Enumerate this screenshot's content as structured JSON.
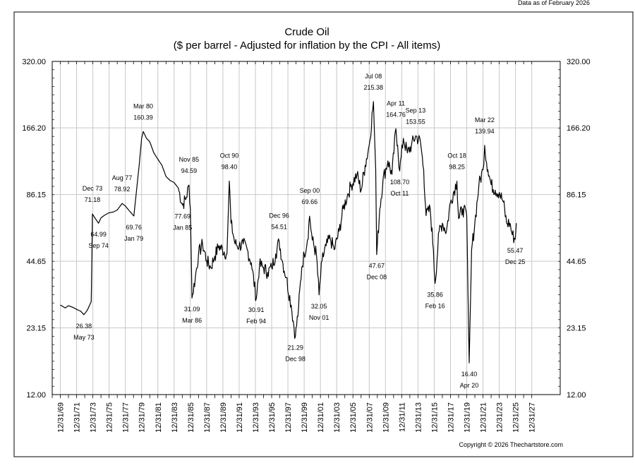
{
  "header_note": "Data as of February 2026",
  "copyright": "Copyright © 2026 Thechartstore.com",
  "chart_data": {
    "type": "line",
    "title": "Crude Oil",
    "subtitle": "($ per barrel - Adjusted for inflation by the CPI - All items)",
    "y_scale": "log",
    "ylim": [
      12,
      320
    ],
    "y_ticks": [
      "320.00",
      "166.20",
      "86.15",
      "44.65",
      "23.15",
      "12.00"
    ],
    "x_ticks": [
      "12/31/69",
      "12/31/71",
      "12/31/73",
      "12/31/75",
      "12/31/77",
      "12/31/79",
      "12/31/81",
      "12/31/83",
      "12/31/85",
      "12/31/87",
      "12/31/89",
      "12/31/91",
      "12/31/93",
      "12/31/95",
      "12/31/97",
      "12/31/99",
      "12/31/01",
      "12/31/03",
      "12/31/05",
      "12/31/07",
      "12/31/09",
      "12/31/11",
      "12/31/13",
      "12/31/15",
      "12/31/17",
      "12/31/19",
      "12/31/21",
      "12/31/23",
      "12/31/25",
      "12/31/27"
    ],
    "x_range": [
      1969.0,
      2028.0
    ],
    "series": [
      {
        "name": "Crude Oil (inflation adjusted)",
        "points": [
          [
            1970.0,
            29.0
          ],
          [
            1970.6,
            28.2
          ],
          [
            1971.0,
            28.8
          ],
          [
            1971.5,
            28.4
          ],
          [
            1972.0,
            27.8
          ],
          [
            1972.5,
            27.3
          ],
          [
            1972.9,
            26.38
          ],
          [
            1973.3,
            27.5
          ],
          [
            1973.8,
            30.0
          ],
          [
            1973.95,
            71.18
          ],
          [
            1974.3,
            68.0
          ],
          [
            1974.7,
            64.99
          ],
          [
            1975.0,
            68.5
          ],
          [
            1975.5,
            70.5
          ],
          [
            1976.0,
            72.0
          ],
          [
            1976.5,
            72.5
          ],
          [
            1977.0,
            74.0
          ],
          [
            1977.6,
            78.92
          ],
          [
            1978.0,
            77.0
          ],
          [
            1978.4,
            74.0
          ],
          [
            1979.04,
            69.76
          ],
          [
            1979.3,
            85.0
          ],
          [
            1979.7,
            115.0
          ],
          [
            1980.0,
            150.0
          ],
          [
            1980.2,
            160.39
          ],
          [
            1980.6,
            150.0
          ],
          [
            1981.0,
            145.0
          ],
          [
            1981.5,
            130.0
          ],
          [
            1982.0,
            122.0
          ],
          [
            1982.5,
            115.0
          ],
          [
            1983.0,
            103.0
          ],
          [
            1983.5,
            99.0
          ],
          [
            1984.0,
            97.0
          ],
          [
            1984.5,
            92.0
          ],
          [
            1985.04,
            77.69
          ],
          [
            1985.5,
            84.0
          ],
          [
            1985.83,
            94.59
          ],
          [
            1986.0,
            75.0
          ],
          [
            1986.2,
            31.09
          ],
          [
            1986.6,
            38.0
          ],
          [
            1987.0,
            48.0
          ],
          [
            1987.5,
            53.0
          ],
          [
            1988.0,
            45.0
          ],
          [
            1988.5,
            42.0
          ],
          [
            1989.0,
            47.0
          ],
          [
            1989.5,
            52.0
          ],
          [
            1990.5,
            48.0
          ],
          [
            1990.79,
            98.4
          ],
          [
            1991.0,
            65.0
          ],
          [
            1991.5,
            53.0
          ],
          [
            1992.0,
            52.0
          ],
          [
            1992.5,
            53.0
          ],
          [
            1993.0,
            50.0
          ],
          [
            1993.5,
            44.0
          ],
          [
            1994.1,
            30.91
          ],
          [
            1994.5,
            43.0
          ],
          [
            1995.0,
            42.0
          ],
          [
            1995.5,
            40.0
          ],
          [
            1996.0,
            42.0
          ],
          [
            1996.5,
            48.0
          ],
          [
            1996.92,
            54.51
          ],
          [
            1997.3,
            45.0
          ],
          [
            1997.8,
            38.0
          ],
          [
            1998.4,
            29.0
          ],
          [
            1998.92,
            21.29
          ],
          [
            1999.3,
            28.0
          ],
          [
            1999.7,
            42.0
          ],
          [
            2000.0,
            48.0
          ],
          [
            2000.4,
            55.0
          ],
          [
            2000.67,
            69.66
          ],
          [
            2001.0,
            55.0
          ],
          [
            2001.5,
            48.0
          ],
          [
            2001.83,
            32.05
          ],
          [
            2002.2,
            45.0
          ],
          [
            2002.7,
            52.0
          ],
          [
            2003.2,
            56.0
          ],
          [
            2003.7,
            50.0
          ],
          [
            2004.3,
            60.0
          ],
          [
            2004.8,
            75.0
          ],
          [
            2005.3,
            85.0
          ],
          [
            2005.8,
            95.0
          ],
          [
            2006.5,
            105.0
          ],
          [
            2007.0,
            90.0
          ],
          [
            2007.5,
            115.0
          ],
          [
            2008.0,
            140.0
          ],
          [
            2008.52,
            215.38
          ],
          [
            2008.8,
            110.0
          ],
          [
            2008.92,
            47.67
          ],
          [
            2009.3,
            75.0
          ],
          [
            2009.7,
            100.0
          ],
          [
            2010.3,
            120.0
          ],
          [
            2010.8,
            105.0
          ],
          [
            2011.28,
            164.76
          ],
          [
            2011.5,
            140.0
          ],
          [
            2011.75,
            108.7
          ],
          [
            2012.2,
            150.0
          ],
          [
            2012.7,
            130.0
          ],
          [
            2013.2,
            140.0
          ],
          [
            2013.7,
            153.55
          ],
          [
            2014.3,
            145.0
          ],
          [
            2014.7,
            110.0
          ],
          [
            2015.0,
            70.0
          ],
          [
            2015.5,
            75.0
          ],
          [
            2015.9,
            50.0
          ],
          [
            2016.1,
            35.86
          ],
          [
            2016.6,
            60.0
          ],
          [
            2017.0,
            65.0
          ],
          [
            2017.5,
            60.0
          ],
          [
            2018.0,
            80.0
          ],
          [
            2018.79,
            98.25
          ],
          [
            2019.0,
            68.0
          ],
          [
            2019.5,
            75.0
          ],
          [
            2020.0,
            70.0
          ],
          [
            2020.3,
            16.4
          ],
          [
            2020.6,
            50.0
          ],
          [
            2021.0,
            65.0
          ],
          [
            2021.5,
            95.0
          ],
          [
            2022.0,
            110.0
          ],
          [
            2022.2,
            139.94
          ],
          [
            2022.6,
            110.0
          ],
          [
            2023.0,
            95.0
          ],
          [
            2023.5,
            90.0
          ],
          [
            2024.0,
            88.0
          ],
          [
            2024.5,
            80.0
          ],
          [
            2024.9,
            65.0
          ],
          [
            2025.3,
            65.0
          ],
          [
            2025.6,
            58.0
          ],
          [
            2025.96,
            55.47
          ],
          [
            2026.1,
            65.0
          ]
        ]
      }
    ],
    "annotations": [
      {
        "date": "May 73",
        "value": "26.38",
        "x": 1972.9,
        "y": 26.38,
        "pos": "below"
      },
      {
        "date": "Dec 73",
        "value": "71.18",
        "x": 1973.95,
        "y": 71.18,
        "pos": "above"
      },
      {
        "date": "Sep 74",
        "value": "64.99",
        "x": 1974.7,
        "y": 64.99,
        "pos": "below"
      },
      {
        "date": "Aug 77",
        "value": "78.92",
        "x": 1977.6,
        "y": 78.92,
        "pos": "above"
      },
      {
        "date": "Jan 79",
        "value": "69.76",
        "x": 1979.04,
        "y": 69.76,
        "pos": "below"
      },
      {
        "date": "Mar 80",
        "value": "160.39",
        "x": 1980.2,
        "y": 160.39,
        "pos": "above"
      },
      {
        "date": "Jan 85",
        "value": "77.69",
        "x": 1985.04,
        "y": 77.69,
        "pos": "below"
      },
      {
        "date": "Nov 85",
        "value": "94.59",
        "x": 1985.83,
        "y": 94.59,
        "pos": "above"
      },
      {
        "date": "Mar 86",
        "value": "31.09",
        "x": 1986.2,
        "y": 31.09,
        "pos": "below"
      },
      {
        "date": "Oct 90",
        "value": "98.40",
        "x": 1990.79,
        "y": 98.4,
        "pos": "above"
      },
      {
        "date": "Feb 94",
        "value": "30.91",
        "x": 1994.1,
        "y": 30.91,
        "pos": "below"
      },
      {
        "date": "Dec 96",
        "value": "54.51",
        "x": 1996.92,
        "y": 54.51,
        "pos": "above"
      },
      {
        "date": "Dec 98",
        "value": "21.29",
        "x": 1998.92,
        "y": 21.29,
        "pos": "below"
      },
      {
        "date": "Sep 00",
        "value": "69.66",
        "x": 2000.67,
        "y": 69.66,
        "pos": "above"
      },
      {
        "date": "Nov 01",
        "value": "32.05",
        "x": 2001.83,
        "y": 32.05,
        "pos": "below"
      },
      {
        "date": "Jul 08",
        "value": "215.38",
        "x": 2008.52,
        "y": 215.38,
        "pos": "above"
      },
      {
        "date": "Dec 08",
        "value": "47.67",
        "x": 2008.92,
        "y": 47.67,
        "pos": "below"
      },
      {
        "date": "Apr 11",
        "value": "164.76",
        "x": 2011.28,
        "y": 164.76,
        "pos": "above"
      },
      {
        "date": "Oct 11",
        "value": "108.70",
        "x": 2011.75,
        "y": 108.7,
        "pos": "below"
      },
      {
        "date": "Sep 13",
        "value": "153.55",
        "x": 2013.7,
        "y": 153.55,
        "pos": "above"
      },
      {
        "date": "Feb 16",
        "value": "35.86",
        "x": 2016.1,
        "y": 35.86,
        "pos": "below"
      },
      {
        "date": "Oct 18",
        "value": "98.25",
        "x": 2018.79,
        "y": 98.25,
        "pos": "above"
      },
      {
        "date": "Apr 20",
        "value": "16.40",
        "x": 2020.3,
        "y": 16.4,
        "pos": "below"
      },
      {
        "date": "Mar 22",
        "value": "139.94",
        "x": 2022.2,
        "y": 139.94,
        "pos": "above"
      },
      {
        "date": "Dec 25",
        "value": "55.47",
        "x": 2025.96,
        "y": 55.47,
        "pos": "below"
      }
    ]
  }
}
